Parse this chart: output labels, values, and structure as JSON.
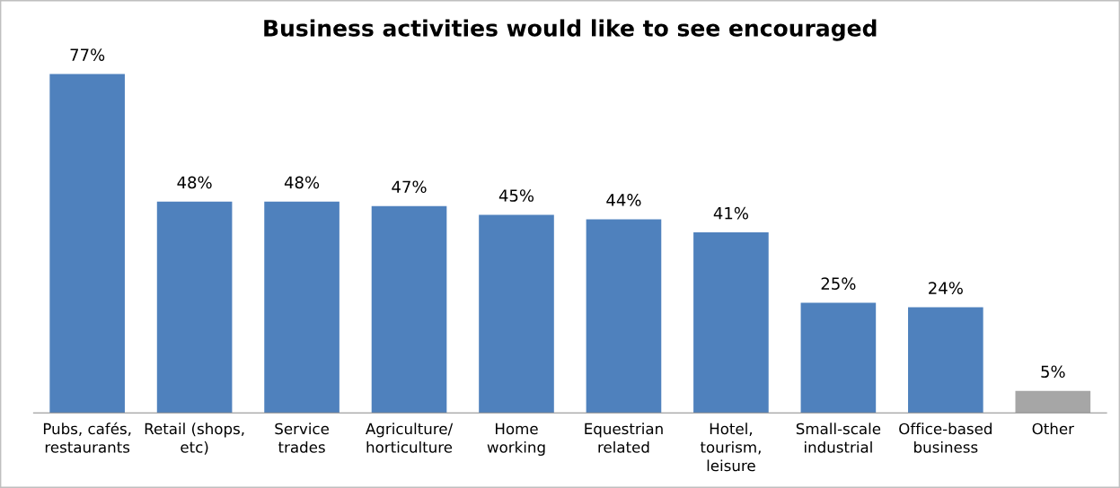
{
  "chart_data": {
    "type": "bar",
    "title": "Business activities would like to see encouraged",
    "categories": [
      "Pubs, cafés,\nrestaurants",
      "Retail (shops,\netc)",
      "Service\ntrades",
      "Agriculture/\nhorticulture",
      "Home\nworking",
      "Equestrian\nrelated",
      "Hotel,\ntourism,\nleisure",
      "Small-scale\nindustrial",
      "Office-based\nbusiness",
      "Other"
    ],
    "values": [
      77,
      48,
      48,
      47,
      45,
      44,
      41,
      25,
      24,
      5
    ],
    "colors": [
      "#4f81bd",
      "#4f81bd",
      "#4f81bd",
      "#4f81bd",
      "#4f81bd",
      "#4f81bd",
      "#4f81bd",
      "#4f81bd",
      "#4f81bd",
      "#a6a6a6"
    ],
    "value_labels": [
      "77%",
      "48%",
      "48%",
      "47%",
      "45%",
      "44%",
      "41%",
      "25%",
      "24%",
      "5%"
    ],
    "grid": false,
    "legend": false
  }
}
